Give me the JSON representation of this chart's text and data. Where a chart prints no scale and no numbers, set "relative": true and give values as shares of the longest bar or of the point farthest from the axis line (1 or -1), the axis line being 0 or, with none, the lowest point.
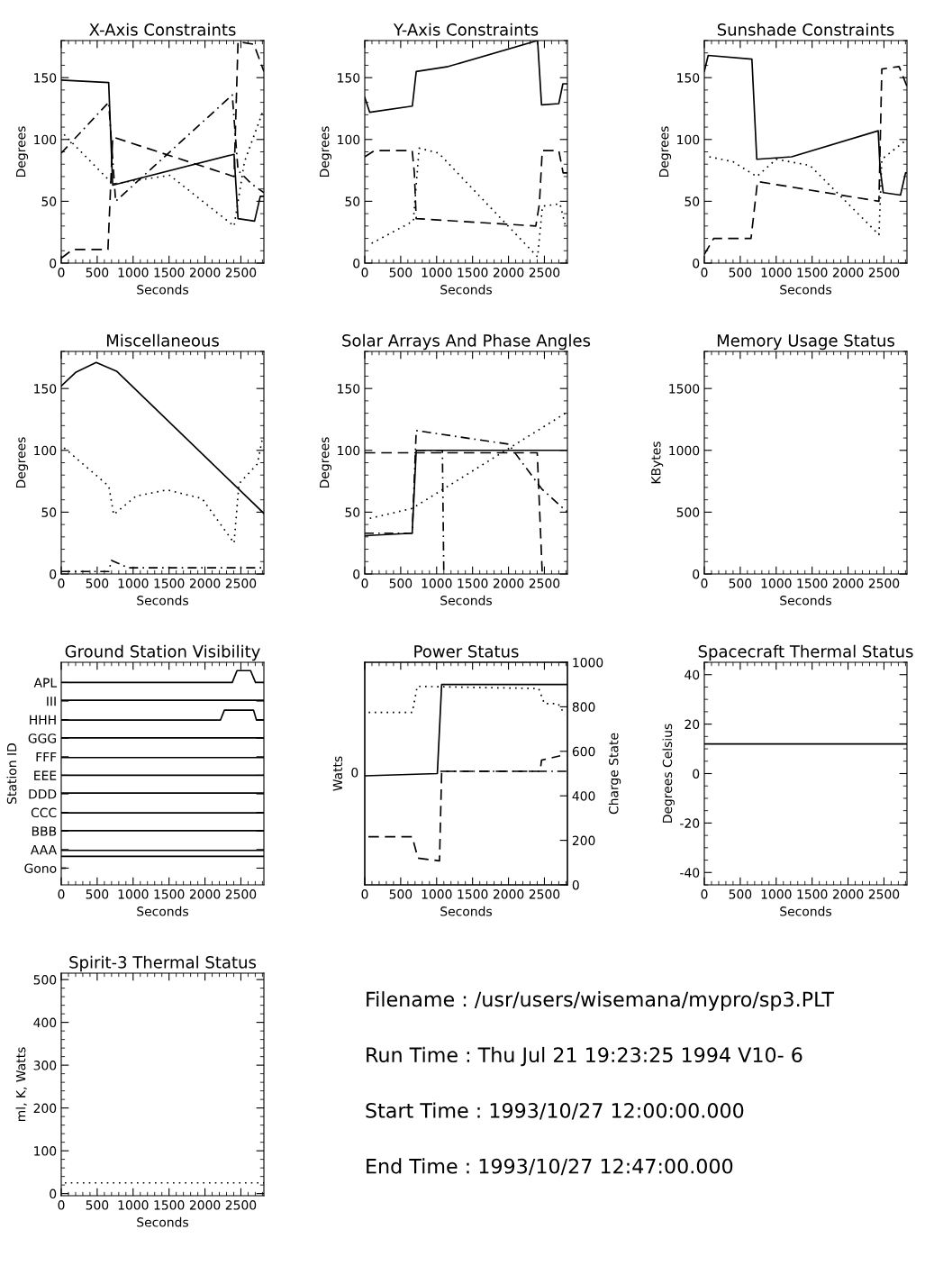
{
  "chart_data": [
    {
      "type": "line",
      "title": "X-Axis Constraints",
      "xlabel": "Seconds",
      "ylabel": "Degrees",
      "xlim": [
        0,
        2820
      ],
      "xticks": [
        0,
        500,
        1000,
        1500,
        2000,
        2500
      ],
      "ylim": [
        0,
        180
      ],
      "yticks": [
        0,
        50,
        100,
        150
      ],
      "grid": false,
      "series": [
        {
          "color": "#000000",
          "line_style": "solid",
          "x": [
            0,
            660,
            716,
            2405,
            2460,
            2690,
            2770,
            2820
          ],
          "values": [
            148,
            146,
            63,
            88,
            36,
            34,
            54,
            54
          ]
        },
        {
          "color": "#000000",
          "line_style": "dashed",
          "x": [
            0,
            160,
            650,
            716,
            2405,
            2460,
            2680,
            2820
          ],
          "values": [
            4,
            11,
            11,
            102,
            70,
            179,
            177,
            155
          ]
        },
        {
          "color": "#000000",
          "line_style": "dashdot",
          "x": [
            0,
            660,
            757,
            2380,
            2460,
            2650,
            2820
          ],
          "values": [
            89,
            130,
            50,
            136,
            75,
            64,
            57
          ]
        },
        {
          "color": "#000000",
          "line_style": "dotted",
          "x": [
            40,
            716,
            1510,
            2405,
            2550,
            2820
          ],
          "values": [
            104,
            64,
            71,
            30,
            82,
            125
          ]
        }
      ]
    },
    {
      "type": "line",
      "title": "Y-Axis Constraints",
      "xlabel": "Seconds",
      "ylabel": "Degrees",
      "xlim": [
        0,
        2820
      ],
      "xticks": [
        0,
        500,
        1000,
        1500,
        2000,
        2500
      ],
      "ylim": [
        0,
        180
      ],
      "yticks": [
        0,
        50,
        100,
        150
      ],
      "grid": false,
      "series": [
        {
          "color": "#000000",
          "line_style": "solid",
          "x": [
            0,
            68,
            662,
            716,
            1162,
            2405,
            2460,
            2700,
            2757,
            2820
          ],
          "values": [
            134,
            122,
            127,
            155,
            159,
            180,
            128,
            129,
            145,
            145
          ]
        },
        {
          "color": "#000000",
          "line_style": "dashed",
          "x": [
            0,
            135,
            660,
            690,
            716,
            2380,
            2430,
            2470,
            2700,
            2760,
            2820
          ],
          "values": [
            86,
            91,
            91,
            73,
            36,
            30,
            48,
            91,
            91,
            73,
            73
          ]
        },
        {
          "color": "#000000",
          "line_style": "dotted",
          "x": [
            95,
            676,
            757,
            1027,
            2405,
            2473,
            2716,
            2797
          ],
          "values": [
            16,
            34,
            93,
            89,
            5,
            46,
            48,
            29
          ]
        }
      ]
    },
    {
      "type": "line",
      "title": "Sunshade Constraints",
      "xlabel": "Seconds",
      "ylabel": "Degrees",
      "xlim": [
        0,
        2820
      ],
      "xticks": [
        0,
        500,
        1000,
        1500,
        2000,
        2500
      ],
      "ylim": [
        0,
        180
      ],
      "yticks": [
        0,
        50,
        100,
        150
      ],
      "grid": false,
      "series": [
        {
          "color": "#000000",
          "line_style": "solid",
          "x": [
            0,
            54,
            662,
            730,
            1216,
            2420,
            2445,
            2490,
            2730,
            2800,
            2820
          ],
          "values": [
            155,
            168,
            165,
            84,
            86,
            107,
            77,
            57,
            55,
            73,
            73
          ]
        },
        {
          "color": "#000000",
          "line_style": "dashed",
          "x": [
            0,
            130,
            650,
            740,
            2430,
            2470,
            2710,
            2820
          ],
          "values": [
            7,
            20,
            20,
            66,
            50,
            157,
            159,
            143
          ]
        },
        {
          "color": "#000000",
          "line_style": "dotted",
          "x": [
            70,
            400,
            730,
            1000,
            1470,
            2430,
            2470,
            2820
          ],
          "values": [
            86,
            82,
            70,
            84,
            79,
            23,
            84,
            100
          ]
        }
      ]
    },
    {
      "type": "line",
      "title": "Miscellaneous",
      "xlabel": "Seconds",
      "ylabel": "Degrees",
      "xlim": [
        0,
        2820
      ],
      "xticks": [
        0,
        500,
        1000,
        1500,
        2000,
        2500
      ],
      "ylim": [
        0,
        180
      ],
      "yticks": [
        0,
        50,
        100,
        150
      ],
      "grid": false,
      "series": [
        {
          "color": "#000000",
          "line_style": "solid",
          "x": [
            0,
            200,
            486,
            770,
            2820
          ],
          "values": [
            152,
            163,
            171,
            164,
            49
          ]
        },
        {
          "color": "#000000",
          "line_style": "dotted",
          "x": [
            40,
            662,
            730,
            1040,
            1473,
            1960,
            2405,
            2473,
            2730,
            2797
          ],
          "values": [
            102,
            71,
            48,
            63,
            68,
            61,
            25,
            73,
            89,
            109
          ]
        },
        {
          "color": "#000000",
          "line_style": "dashdot",
          "x": [
            0,
            660,
            700,
            930,
            2820
          ],
          "values": [
            2,
            2,
            11,
            5,
            5
          ]
        }
      ]
    },
    {
      "type": "line",
      "title": "Solar Arrays And Phase Angles",
      "xlabel": "Seconds",
      "ylabel": "Degrees",
      "xlim": [
        0,
        2820
      ],
      "xticks": [
        0,
        500,
        1000,
        1500,
        2000,
        2500
      ],
      "ylim": [
        0,
        180
      ],
      "yticks": [
        0,
        50,
        100,
        150
      ],
      "grid": false,
      "series": [
        {
          "color": "#000000",
          "line_style": "solid",
          "x": [
            0,
            660,
            716,
            2820
          ],
          "values": [
            31,
            33,
            100,
            100
          ]
        },
        {
          "color": "#000000",
          "line_style": "dashed",
          "x": [
            0,
            2400,
            2470
          ],
          "values": [
            98,
            98,
            0
          ]
        },
        {
          "color": "#000000",
          "line_style": "dashdot",
          "x": [
            0,
            660,
            716,
            2000,
            2460,
            2800,
            2820
          ],
          "values": [
            33,
            33,
            116,
            105,
            69,
            51,
            51
          ]
        },
        {
          "color": "#000000",
          "line_style": "dashdot",
          "x": [
            720,
            1080,
            1100
          ],
          "values": [
            100,
            100,
            0
          ]
        },
        {
          "color": "#000000",
          "line_style": "dotted",
          "x": [
            70,
            660,
            2820
          ],
          "values": [
            45,
            53,
            131
          ]
        }
      ]
    },
    {
      "type": "line",
      "title": "Memory Usage Status",
      "xlabel": "Seconds",
      "ylabel": "KBytes",
      "xlim": [
        0,
        2820
      ],
      "xticks": [
        0,
        500,
        1000,
        1500,
        2000,
        2500
      ],
      "ylim": [
        0,
        1800
      ],
      "yticks": [
        0,
        500,
        1000,
        1500
      ],
      "grid": false
    },
    {
      "type": "line",
      "title": "Ground Station Visibility",
      "xlabel": "Seconds",
      "ylabel": "Station ID",
      "xlim": [
        0,
        2820
      ],
      "xticks": [
        0,
        500,
        1000,
        1500,
        2000,
        2500
      ],
      "y_categories": [
        "APL",
        "III",
        "HHH",
        "GGG",
        "FFF",
        "EEE",
        "DDD",
        "CCC",
        "BBB",
        "AAA",
        "Gono"
      ],
      "relative": true,
      "grid": false,
      "series": [
        {
          "color": "#000000",
          "line_style": "solid",
          "x": [
            0,
            2380,
            2446,
            2635,
            2703,
            2820
          ],
          "values": [
            0.94,
            0.94,
            1,
            1,
            0.94,
            0.94
          ]
        },
        {
          "color": "#000000",
          "line_style": "solid",
          "x": [
            0,
            2820
          ],
          "values": [
            0.85,
            0.85
          ]
        },
        {
          "color": "#000000",
          "line_style": "solid",
          "x": [
            0,
            2216,
            2270,
            2676,
            2716,
            2820
          ],
          "values": [
            0.75,
            0.75,
            0.8,
            0.8,
            0.75,
            0.75
          ]
        },
        {
          "color": "#000000",
          "line_style": "solid",
          "x": [
            0,
            2820
          ],
          "values": [
            0.66,
            0.66
          ]
        },
        {
          "color": "#000000",
          "line_style": "solid",
          "x": [
            0,
            2820
          ],
          "values": [
            0.56,
            0.56
          ]
        },
        {
          "color": "#000000",
          "line_style": "solid",
          "x": [
            0,
            2820
          ],
          "values": [
            0.47,
            0.47
          ]
        },
        {
          "color": "#000000",
          "line_style": "solid",
          "x": [
            0,
            2820
          ],
          "values": [
            0.38,
            0.38
          ]
        },
        {
          "color": "#000000",
          "line_style": "solid",
          "x": [
            0,
            2820
          ],
          "values": [
            0.28,
            0.28
          ]
        },
        {
          "color": "#000000",
          "line_style": "solid",
          "x": [
            0,
            2820
          ],
          "values": [
            0.19,
            0.19
          ]
        },
        {
          "color": "#000000",
          "line_style": "solid",
          "x": [
            0,
            2820
          ],
          "values": [
            0.09,
            0.09
          ]
        },
        {
          "color": "#000000",
          "line_style": "solid",
          "x": [
            0,
            2820
          ],
          "values": [
            0.06,
            0.06
          ]
        },
        {
          "color": "#000000",
          "line_style": "solid",
          "x": [
            0,
            54
          ],
          "values": [
            0,
            0
          ]
        }
      ]
    },
    {
      "type": "line",
      "title": "Power Status",
      "xlabel": "Seconds",
      "ylabel": "Watts",
      "y2label": "Charge State",
      "xlim": [
        0,
        2820
      ],
      "xticks": [
        0,
        500,
        1000,
        1500,
        2000,
        2500
      ],
      "annotations": [
        "0"
      ],
      "y2lim": [
        0,
        1000
      ],
      "y2ticks": [
        0,
        200,
        400,
        600,
        800,
        1000
      ],
      "grid": false,
      "series": [
        {
          "color": "#000000",
          "line_style": "solid",
          "axis": "y2",
          "x": [
            0,
            1010,
            1070,
            2820
          ],
          "values": [
            490,
            500,
            900,
            900
          ]
        },
        {
          "color": "#000000",
          "line_style": "dotted",
          "axis": "y2",
          "x": [
            54,
            662,
            730,
            2420,
            2500,
            2690,
            2784
          ],
          "values": [
            775,
            775,
            892,
            882,
            814,
            814,
            765
          ]
        },
        {
          "color": "#000000",
          "line_style": "dashed",
          "axis": "y2",
          "x": [
            50,
            660,
            740,
            1040,
            1070,
            2440,
            2460,
            2720
          ],
          "values": [
            216,
            216,
            120,
            108,
            510,
            510,
            560,
            580
          ]
        },
        {
          "color": "#000000",
          "line_style": "dashdot",
          "axis": "y2",
          "x": [
            1050,
            2820
          ],
          "values": [
            510,
            510
          ]
        }
      ]
    },
    {
      "type": "line",
      "title": "Spacecraft Thermal Status",
      "xlabel": "Seconds",
      "ylabel": "Degrees Celsius",
      "xlim": [
        0,
        2820
      ],
      "xticks": [
        0,
        500,
        1000,
        1500,
        2000,
        2500
      ],
      "ylim": [
        -45,
        45
      ],
      "yticks": [
        -40,
        -20,
        0,
        20,
        40
      ],
      "grid": false,
      "series": [
        {
          "color": "#000000",
          "line_style": "solid",
          "x": [
            0,
            2820
          ],
          "values": [
            12,
            12
          ]
        }
      ]
    },
    {
      "type": "line",
      "title": "Spirit-3 Thermal Status",
      "xlabel": "Seconds",
      "ylabel": "ml, K, Watts",
      "xlim": [
        0,
        2820
      ],
      "xticks": [
        0,
        500,
        1000,
        1500,
        2000,
        2500
      ],
      "ylim": [
        -5,
        515
      ],
      "yticks": [
        0,
        100,
        200,
        300,
        400,
        500
      ],
      "grid": false,
      "series": [
        {
          "color": "#000000",
          "line_style": "dotted",
          "x": [
            50,
            2820
          ],
          "values": [
            25,
            25
          ]
        }
      ]
    },
    {
      "type": "other",
      "annotations": [
        "Filename : /usr/users/wisemana/mypro/sp3.PLT",
        "Run Time : Thu Jul 21 19:23:25 1994 V10- 6",
        "Start Time : 1993/10/27 12:00:00.000",
        "End Time : 1993/10/27 12:47:00.000"
      ]
    }
  ]
}
